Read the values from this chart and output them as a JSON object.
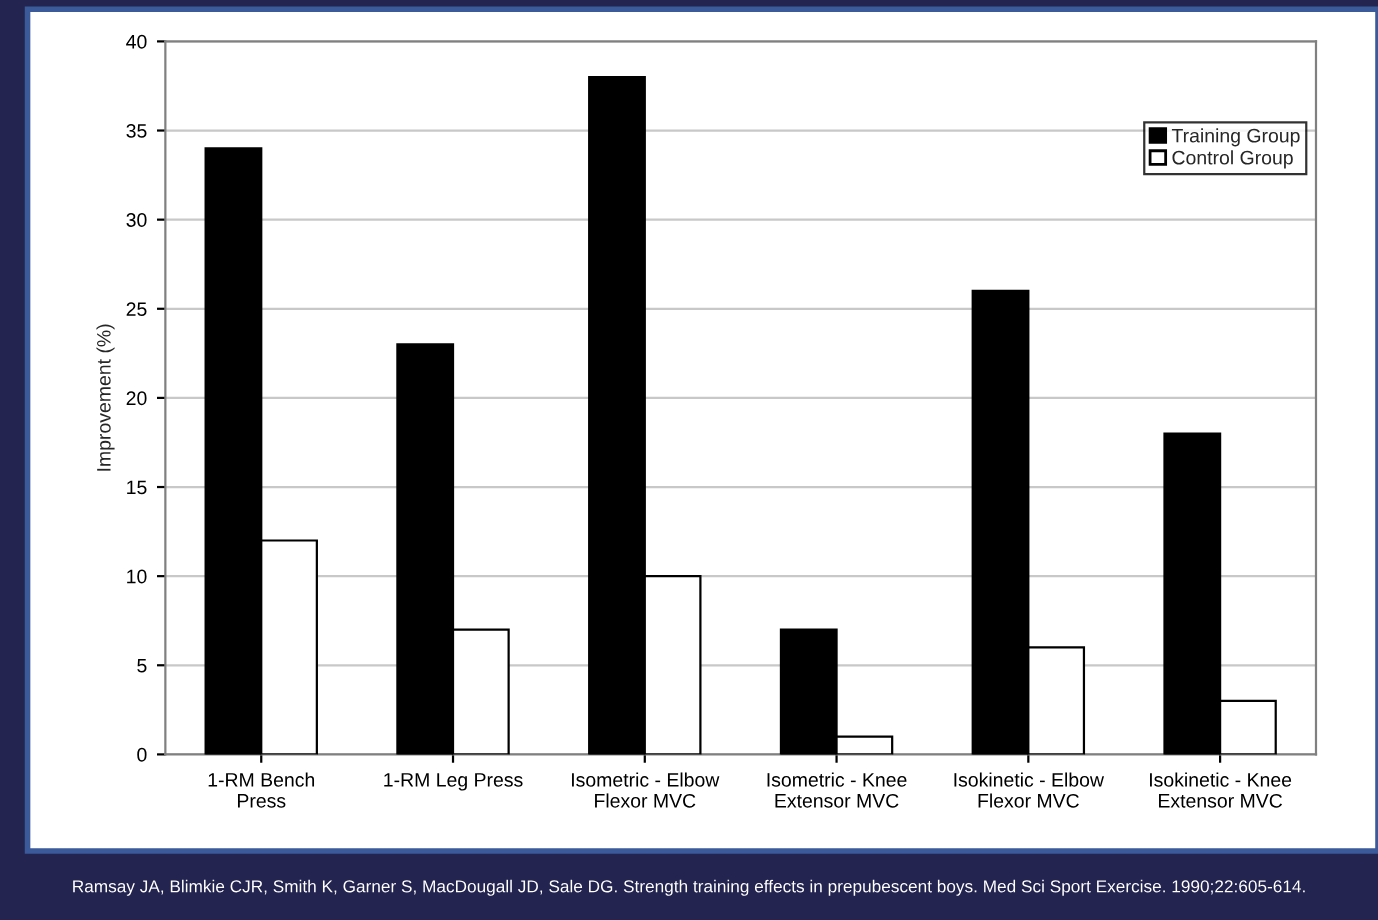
{
  "chart_data": {
    "type": "bar",
    "ylabel": "Improvement (%)",
    "categories": [
      "1-RM Bench\nPress",
      "1-RM Leg Press",
      "Isometric - Elbow\nFlexor MVC",
      "Isometric - Knee\nExtensor MVC",
      "Isokinetic - Elbow\nFlexor MVC",
      "Isokinetic - Knee\nExtensor MVC"
    ],
    "series": [
      {
        "name": "Training Group",
        "color": "#000000",
        "values": [
          34,
          23,
          38,
          7,
          26,
          18
        ]
      },
      {
        "name": "Control Group",
        "color": "#ffffff",
        "values": [
          12,
          7,
          10,
          1,
          6,
          3
        ]
      }
    ],
    "ylim": [
      0,
      40
    ],
    "yticks": [
      0,
      5,
      10,
      15,
      20,
      25,
      30,
      35,
      40
    ],
    "grid": "y",
    "legend": "top right",
    "annotations": [
      "Ramsay JA, Blimkie CJR, Smith K, Garner S, MacDougall JD, Sale DG. Strength training effects in prepubescent boys. Med Sci Sport Exercise. 1990;22:605-614."
    ]
  }
}
